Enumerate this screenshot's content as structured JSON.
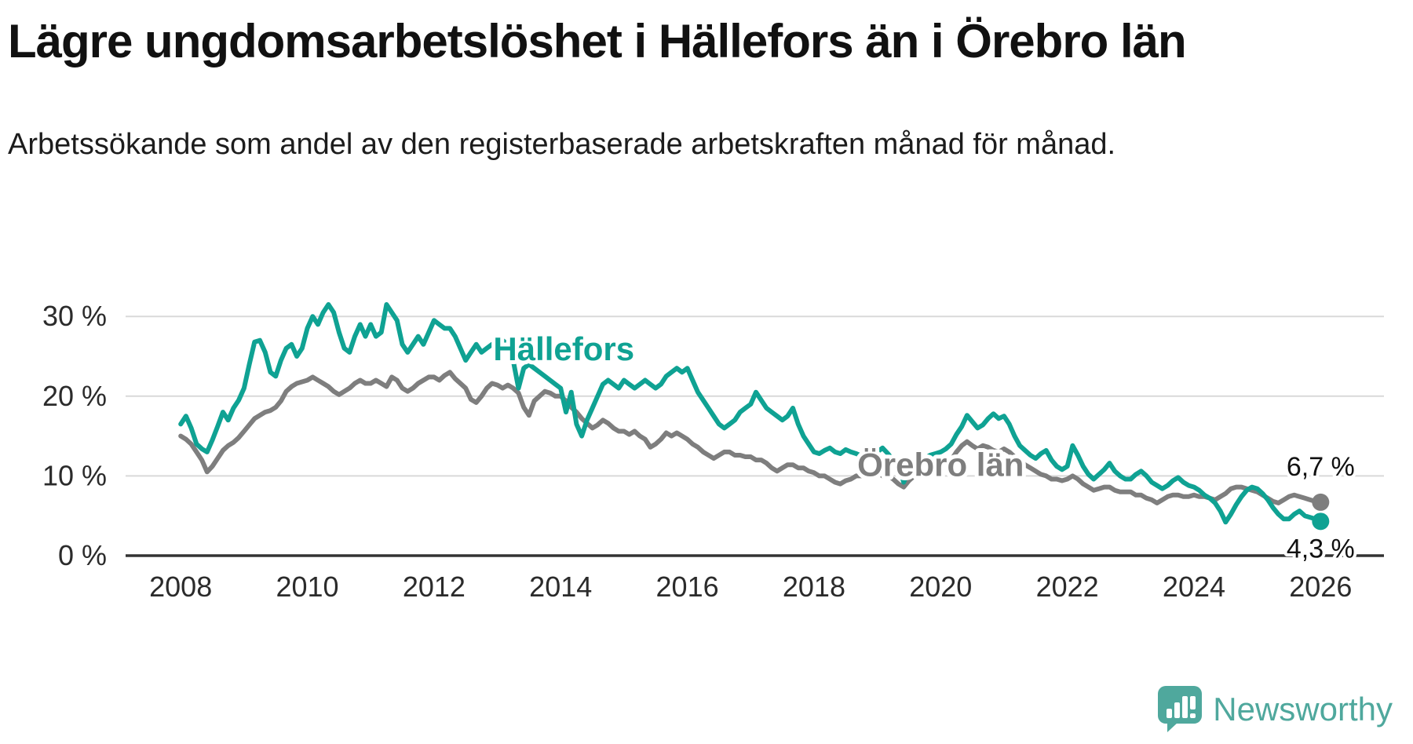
{
  "title": "Lägre ungdomsarbetslöshet i Hällefors än i Örebro län",
  "subtitle": "Arbetssökande som andel av den registerbaserade arbetskraften månad för månad.",
  "branding": {
    "logo_text": "Newsworthy",
    "logo_icon": "bar-chart-speech-bubble-icon",
    "logo_color": "#4fa89d"
  },
  "chart_data": {
    "type": "line",
    "title": "Lägre ungdomsarbetslöshet i Hällefors än i Örebro län",
    "subtitle": "Arbetssökande som andel av den registerbaserade arbetskraften månad för månad.",
    "unit": "%",
    "grid": true,
    "legend_position": "inline-labels",
    "x_start": 2008.0,
    "points_per_year": 12,
    "xlim": [
      2007.13,
      2027.0
    ],
    "ylim": [
      0,
      31.3
    ],
    "x_ticks": [
      2008,
      2010,
      2012,
      2014,
      2016,
      2018,
      2020,
      2022,
      2024,
      2026
    ],
    "y_ticks": [
      {
        "value": 0,
        "label": "0 %"
      },
      {
        "value": 10,
        "label": "10 %"
      },
      {
        "value": 20,
        "label": "20 %"
      },
      {
        "value": 30,
        "label": "30 %"
      }
    ],
    "colors": {
      "axis": "#333333",
      "grid": "#d9d9d9",
      "tick_text": "#2b2b2b",
      "value_label": "#111111"
    },
    "annotations": [
      {
        "id": "hallefors",
        "text": "Hällefors",
        "x": 2014.05,
        "y": 24.5,
        "color": "#0fa293"
      },
      {
        "id": "orebro-lan",
        "text": "Örebro län",
        "x": 2020.0,
        "y": 10.0,
        "color": "#7e7e7e"
      }
    ],
    "series": [
      {
        "id": "orebro-lan",
        "name": "Örebro län",
        "color": "#7e7e7e",
        "end_label": "6,7 %",
        "end_value": 6.7,
        "end_label_position": "above",
        "values": [
          15.0,
          14.6,
          14.0,
          13.0,
          12.0,
          10.5,
          11.2,
          12.2,
          13.2,
          13.8,
          14.2,
          14.8,
          15.6,
          16.4,
          17.2,
          17.6,
          18.0,
          18.2,
          18.6,
          19.4,
          20.6,
          21.2,
          21.6,
          21.8,
          22.0,
          22.4,
          22.0,
          21.6,
          21.2,
          20.6,
          20.2,
          20.6,
          21.0,
          21.6,
          22.0,
          21.6,
          21.6,
          22.0,
          21.6,
          21.2,
          22.4,
          22.0,
          21.0,
          20.6,
          21.0,
          21.6,
          22.0,
          22.4,
          22.4,
          22.0,
          22.6,
          23.0,
          22.2,
          21.6,
          21.0,
          19.6,
          19.2,
          20.0,
          21.0,
          21.6,
          21.4,
          21.0,
          21.4,
          21.0,
          20.4,
          18.6,
          17.6,
          19.4,
          20.0,
          20.6,
          20.4,
          20.0,
          20.0,
          19.4,
          18.6,
          18.0,
          17.2,
          16.6,
          16.0,
          16.4,
          17.0,
          16.6,
          16.0,
          15.6,
          15.6,
          15.2,
          15.6,
          15.0,
          14.6,
          13.6,
          14.0,
          14.6,
          15.4,
          15.0,
          15.4,
          15.0,
          14.6,
          14.0,
          13.6,
          13.0,
          12.6,
          12.2,
          12.6,
          13.0,
          13.0,
          12.6,
          12.6,
          12.4,
          12.4,
          12.0,
          12.0,
          11.6,
          11.0,
          10.6,
          11.0,
          11.4,
          11.4,
          11.0,
          11.0,
          10.6,
          10.4,
          10.0,
          10.0,
          9.6,
          9.2,
          9.0,
          9.4,
          9.6,
          10.0,
          10.0,
          10.4,
          10.4,
          10.4,
          10.0,
          10.0,
          9.6,
          9.0,
          8.6,
          9.4,
          10.0,
          10.0,
          10.4,
          10.6,
          10.8,
          11.0,
          11.4,
          12.0,
          13.0,
          13.8,
          14.3,
          13.8,
          13.4,
          13.8,
          13.6,
          13.2,
          13.0,
          13.4,
          13.0,
          12.4,
          12.0,
          11.4,
          11.0,
          10.6,
          10.2,
          10.0,
          9.6,
          9.6,
          9.4,
          9.6,
          10.0,
          9.6,
          9.0,
          8.6,
          8.2,
          8.4,
          8.6,
          8.6,
          8.2,
          8.0,
          8.0,
          8.0,
          7.6,
          7.6,
          7.2,
          7.0,
          6.6,
          7.0,
          7.4,
          7.6,
          7.6,
          7.4,
          7.4,
          7.6,
          7.4,
          7.4,
          7.2,
          7.0,
          7.4,
          7.8,
          8.4,
          8.6,
          8.6,
          8.4,
          8.2,
          8.0,
          7.6,
          7.2,
          6.8,
          6.6,
          7.0,
          7.4,
          7.6,
          7.4,
          7.2,
          7.0,
          6.8,
          6.7
        ]
      },
      {
        "id": "hallefors",
        "name": "Hällefors",
        "color": "#0fa293",
        "end_label": "4,3 %",
        "end_value": 4.3,
        "end_label_position": "below",
        "values": [
          16.5,
          17.5,
          16.0,
          14.0,
          13.4,
          13.0,
          14.5,
          16.2,
          18.0,
          17.0,
          18.5,
          19.5,
          21.0,
          24.0,
          26.8,
          27.0,
          25.5,
          23.0,
          22.5,
          24.5,
          26.0,
          26.5,
          25.0,
          26.0,
          28.5,
          30.0,
          29.0,
          30.5,
          31.5,
          30.5,
          28.0,
          26.0,
          25.5,
          27.5,
          29.0,
          27.5,
          29.0,
          27.5,
          28.0,
          31.5,
          30.5,
          29.5,
          26.5,
          25.5,
          26.5,
          27.5,
          26.5,
          28.0,
          29.5,
          29.0,
          28.5,
          28.5,
          27.5,
          26.0,
          24.5,
          25.5,
          26.5,
          25.5,
          26.0,
          26.5,
          26.0,
          27.0,
          26.5,
          24.5,
          21.0,
          23.5,
          24.0,
          23.5,
          23.0,
          22.5,
          22.0,
          21.5,
          21.0,
          18.0,
          20.5,
          16.5,
          15.0,
          17.0,
          18.5,
          20.0,
          21.5,
          22.0,
          21.5,
          21.0,
          22.0,
          21.5,
          21.0,
          21.5,
          22.0,
          21.5,
          21.0,
          21.5,
          22.5,
          23.0,
          23.5,
          23.0,
          23.5,
          22.0,
          20.5,
          19.5,
          18.5,
          17.5,
          16.5,
          16.0,
          16.5,
          17.0,
          18.0,
          18.5,
          19.0,
          20.5,
          19.5,
          18.5,
          18.0,
          17.5,
          17.0,
          17.5,
          18.5,
          16.5,
          15.0,
          14.0,
          13.0,
          12.8,
          13.2,
          13.5,
          13.0,
          12.8,
          13.3,
          13.0,
          12.8,
          12.5,
          13.0,
          13.2,
          13.0,
          13.5,
          12.8,
          12.0,
          11.5,
          9.2,
          10.8,
          11.2,
          11.8,
          12.2,
          12.6,
          12.8,
          13.0,
          13.4,
          14.0,
          15.2,
          16.2,
          17.6,
          16.8,
          16.0,
          16.4,
          17.2,
          17.8,
          17.2,
          17.5,
          16.5,
          15.0,
          13.8,
          13.2,
          12.6,
          12.2,
          12.8,
          13.2,
          12.0,
          11.2,
          10.8,
          11.2,
          13.8,
          12.6,
          11.2,
          10.2,
          9.6,
          10.2,
          10.8,
          11.6,
          10.6,
          10.0,
          9.6,
          9.6,
          10.2,
          10.6,
          10.0,
          9.2,
          8.8,
          8.4,
          8.8,
          9.4,
          9.8,
          9.2,
          8.8,
          8.6,
          8.2,
          7.6,
          7.2,
          6.6,
          5.6,
          4.2,
          5.2,
          6.4,
          7.4,
          8.2,
          8.6,
          8.4,
          7.8,
          7.0,
          6.0,
          5.2,
          4.6,
          4.6,
          5.2,
          5.6,
          5.0,
          4.8,
          4.6,
          4.3
        ]
      }
    ]
  }
}
